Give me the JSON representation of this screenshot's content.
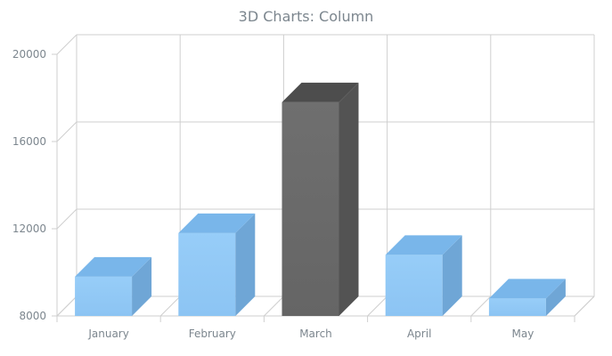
{
  "chart_data": {
    "type": "bar",
    "title": "3D Charts: Column",
    "categories": [
      "January",
      "February",
      "March",
      "April",
      "May"
    ],
    "values": [
      9800,
      11800,
      17800,
      10800,
      8800
    ],
    "highlight_index": 2,
    "ylim": [
      8000,
      20000
    ],
    "yticks": [
      8000,
      12000,
      16000,
      20000
    ],
    "grid": true,
    "style": "3d-column",
    "colors": {
      "bar": "#8cc4f3",
      "bar_top": "#79b6ea",
      "bar_side": "#6fa6d6",
      "highlight": "#656565",
      "highlight_top": "#4d4d4d",
      "highlight_side": "#535353",
      "grid": "#cfcfcf",
      "text": "#7c868e"
    }
  }
}
